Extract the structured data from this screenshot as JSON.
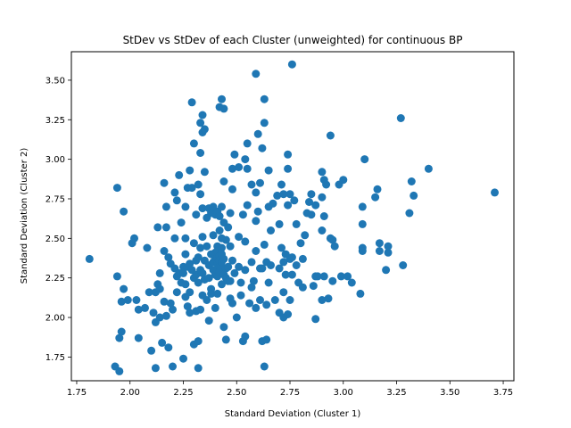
{
  "chart_data": {
    "type": "scatter",
    "title": "StDev vs StDev of each Cluster (unweighted) for continuous BP",
    "xlabel": "Standard Deviation (Cluster 1)",
    "ylabel": "Standard Deviation (Cluster 2)",
    "xlim": [
      1.725,
      3.8
    ],
    "ylim": [
      1.6,
      3.68
    ],
    "xticks": [
      "1.75",
      "2.00",
      "2.25",
      "2.50",
      "2.75",
      "3.00",
      "3.25",
      "3.50",
      "3.75"
    ],
    "yticks": [
      "1.75",
      "2.00",
      "2.25",
      "2.50",
      "2.75",
      "3.00",
      "3.25",
      "3.50"
    ],
    "marker_color": "#1f77b4",
    "grid": false,
    "legend": "none",
    "series": [
      {
        "points": [
          [
            1.81,
            2.37
          ],
          [
            1.93,
            1.69
          ],
          [
            1.94,
            2.82
          ],
          [
            1.94,
            2.26
          ],
          [
            1.95,
            1.87
          ],
          [
            1.95,
            1.66
          ],
          [
            1.96,
            2.1
          ],
          [
            1.96,
            1.91
          ],
          [
            1.97,
            2.67
          ],
          [
            1.97,
            2.18
          ],
          [
            1.99,
            2.11
          ],
          [
            2.01,
            2.47
          ],
          [
            2.02,
            2.5
          ],
          [
            2.03,
            2.11
          ],
          [
            2.04,
            2.05
          ],
          [
            2.04,
            1.87
          ],
          [
            2.07,
            2.06
          ],
          [
            2.08,
            2.44
          ],
          [
            2.09,
            2.16
          ],
          [
            2.1,
            1.79
          ],
          [
            2.11,
            2.03
          ],
          [
            2.12,
            2.16
          ],
          [
            2.12,
            1.97
          ],
          [
            2.12,
            1.68
          ],
          [
            2.13,
            2.57
          ],
          [
            2.13,
            2.21
          ],
          [
            2.14,
            2.28
          ],
          [
            2.14,
            2.18
          ],
          [
            2.14,
            2.0
          ],
          [
            2.15,
            1.84
          ],
          [
            2.16,
            2.85
          ],
          [
            2.16,
            2.42
          ],
          [
            2.16,
            2.1
          ],
          [
            2.17,
            2.57
          ],
          [
            2.17,
            2.01
          ],
          [
            2.17,
            2.7
          ],
          [
            2.18,
            1.81
          ],
          [
            2.18,
            2.38
          ],
          [
            2.19,
            2.34
          ],
          [
            2.19,
            2.09
          ],
          [
            2.2,
            2.05
          ],
          [
            2.2,
            1.69
          ],
          [
            2.21,
            2.79
          ],
          [
            2.21,
            2.5
          ],
          [
            2.21,
            2.31
          ],
          [
            2.22,
            2.26
          ],
          [
            2.22,
            2.16
          ],
          [
            2.22,
            2.74
          ],
          [
            2.23,
            2.9
          ],
          [
            2.23,
            2.28
          ],
          [
            2.24,
            2.6
          ],
          [
            2.24,
            2.22
          ],
          [
            2.25,
            2.32
          ],
          [
            2.25,
            2.28
          ],
          [
            2.25,
            1.74
          ],
          [
            2.26,
            2.7
          ],
          [
            2.26,
            2.5
          ],
          [
            2.26,
            2.4
          ],
          [
            2.26,
            2.13
          ],
          [
            2.26,
            2.21
          ],
          [
            2.27,
            2.82
          ],
          [
            2.27,
            2.32
          ],
          [
            2.27,
            2.07
          ],
          [
            2.28,
            2.93
          ],
          [
            2.28,
            2.34
          ],
          [
            2.28,
            2.16
          ],
          [
            2.28,
            2.03
          ],
          [
            2.29,
            3.36
          ],
          [
            2.29,
            2.82
          ],
          [
            2.29,
            2.3
          ],
          [
            2.3,
            3.1
          ],
          [
            2.3,
            2.47
          ],
          [
            2.3,
            2.25
          ],
          [
            2.3,
            1.83
          ],
          [
            2.31,
            2.65
          ],
          [
            2.31,
            2.36
          ],
          [
            2.31,
            2.27
          ],
          [
            2.31,
            2.04
          ],
          [
            2.32,
            2.84
          ],
          [
            2.32,
            2.38
          ],
          [
            2.32,
            2.22
          ],
          [
            2.32,
            1.85
          ],
          [
            2.32,
            1.68
          ],
          [
            2.33,
            3.23
          ],
          [
            2.33,
            3.04
          ],
          [
            2.33,
            2.78
          ],
          [
            2.33,
            2.44
          ],
          [
            2.33,
            2.3
          ],
          [
            2.33,
            2.05
          ],
          [
            2.34,
            3.28
          ],
          [
            2.34,
            3.17
          ],
          [
            2.34,
            2.69
          ],
          [
            2.34,
            2.51
          ],
          [
            2.34,
            2.28
          ],
          [
            2.34,
            2.14
          ],
          [
            2.35,
            2.92
          ],
          [
            2.35,
            3.19
          ],
          [
            2.35,
            2.36
          ],
          [
            2.35,
            2.24
          ],
          [
            2.36,
            2.63
          ],
          [
            2.36,
            2.45
          ],
          [
            2.36,
            2.11
          ],
          [
            2.37,
            2.69
          ],
          [
            2.37,
            2.33
          ],
          [
            2.37,
            2.25
          ],
          [
            2.37,
            1.98
          ],
          [
            2.38,
            2.4
          ],
          [
            2.38,
            2.18
          ],
          [
            2.38,
            2.15
          ],
          [
            2.38,
            2.66
          ],
          [
            2.39,
            2.7
          ],
          [
            2.39,
            2.52
          ],
          [
            2.39,
            2.35
          ],
          [
            2.39,
            2.3
          ],
          [
            2.4,
            2.65
          ],
          [
            2.4,
            2.41
          ],
          [
            2.4,
            2.37
          ],
          [
            2.4,
            2.27
          ],
          [
            2.4,
            2.06
          ],
          [
            2.41,
            2.67
          ],
          [
            2.41,
            2.45
          ],
          [
            2.41,
            2.42
          ],
          [
            2.41,
            2.38
          ],
          [
            2.41,
            2.34
          ],
          [
            2.41,
            2.26
          ],
          [
            2.41,
            2.15
          ],
          [
            2.42,
            3.33
          ],
          [
            2.42,
            2.64
          ],
          [
            2.42,
            2.55
          ],
          [
            2.42,
            2.39
          ],
          [
            2.42,
            2.36
          ],
          [
            2.42,
            2.32
          ],
          [
            2.42,
            2.29
          ],
          [
            2.43,
            3.38
          ],
          [
            2.43,
            2.7
          ],
          [
            2.43,
            2.5
          ],
          [
            2.43,
            2.44
          ],
          [
            2.43,
            2.4
          ],
          [
            2.43,
            2.35
          ],
          [
            2.43,
            2.21
          ],
          [
            2.44,
            3.32
          ],
          [
            2.44,
            2.86
          ],
          [
            2.44,
            2.6
          ],
          [
            2.44,
            2.37
          ],
          [
            2.44,
            2.27
          ],
          [
            2.44,
            1.94
          ],
          [
            2.45,
            2.49
          ],
          [
            2.45,
            2.31
          ],
          [
            2.45,
            2.25
          ],
          [
            2.45,
            1.86
          ],
          [
            2.46,
            2.57
          ],
          [
            2.46,
            2.23
          ],
          [
            2.46,
            2.32
          ],
          [
            2.47,
            2.66
          ],
          [
            2.47,
            2.45
          ],
          [
            2.47,
            2.23
          ],
          [
            2.47,
            2.12
          ],
          [
            2.48,
            2.94
          ],
          [
            2.48,
            2.81
          ],
          [
            2.48,
            2.36
          ],
          [
            2.48,
            2.09
          ],
          [
            2.49,
            3.03
          ],
          [
            2.49,
            2.28
          ],
          [
            2.5,
            2.0
          ],
          [
            2.51,
            2.95
          ],
          [
            2.51,
            2.51
          ],
          [
            2.51,
            2.32
          ],
          [
            2.52,
            2.22
          ],
          [
            2.52,
            2.14
          ],
          [
            2.53,
            2.65
          ],
          [
            2.53,
            1.85
          ],
          [
            2.54,
            3.0
          ],
          [
            2.54,
            2.48
          ],
          [
            2.54,
            2.3
          ],
          [
            2.54,
            1.88
          ],
          [
            2.55,
            3.1
          ],
          [
            2.55,
            2.94
          ],
          [
            2.55,
            2.71
          ],
          [
            2.56,
            2.09
          ],
          [
            2.57,
            2.84
          ],
          [
            2.57,
            2.35
          ],
          [
            2.57,
            2.19
          ],
          [
            2.58,
            2.23
          ],
          [
            2.59,
            3.54
          ],
          [
            2.59,
            2.79
          ],
          [
            2.59,
            2.61
          ],
          [
            2.59,
            2.42
          ],
          [
            2.59,
            2.06
          ],
          [
            2.6,
            3.16
          ],
          [
            2.6,
            2.67
          ],
          [
            2.61,
            2.85
          ],
          [
            2.61,
            2.31
          ],
          [
            2.61,
            2.11
          ],
          [
            2.62,
            3.07
          ],
          [
            2.62,
            2.31
          ],
          [
            2.62,
            1.85
          ],
          [
            2.63,
            2.46
          ],
          [
            2.63,
            1.69
          ],
          [
            2.63,
            3.23
          ],
          [
            2.63,
            3.38
          ],
          [
            2.64,
            2.35
          ],
          [
            2.64,
            2.08
          ],
          [
            2.64,
            1.86
          ],
          [
            2.65,
            2.93
          ],
          [
            2.65,
            2.7
          ],
          [
            2.65,
            2.22
          ],
          [
            2.66,
            2.55
          ],
          [
            2.66,
            2.33
          ],
          [
            2.67,
            2.72
          ],
          [
            2.68,
            2.11
          ],
          [
            2.69,
            2.77
          ],
          [
            2.7,
            2.59
          ],
          [
            2.7,
            2.31
          ],
          [
            2.7,
            2.03
          ],
          [
            2.71,
            2.84
          ],
          [
            2.71,
            2.44
          ],
          [
            2.72,
            2.78
          ],
          [
            2.72,
            2.35
          ],
          [
            2.72,
            2.16
          ],
          [
            2.72,
            2.0
          ],
          [
            2.73,
            2.4
          ],
          [
            2.73,
            2.27
          ],
          [
            2.74,
            3.03
          ],
          [
            2.74,
            2.94
          ],
          [
            2.74,
            2.71
          ],
          [
            2.74,
            2.02
          ],
          [
            2.75,
            2.78
          ],
          [
            2.75,
            2.37
          ],
          [
            2.75,
            2.11
          ],
          [
            2.76,
            3.6
          ],
          [
            2.76,
            2.38
          ],
          [
            2.76,
            2.27
          ],
          [
            2.77,
            2.74
          ],
          [
            2.78,
            2.59
          ],
          [
            2.78,
            2.33
          ],
          [
            2.79,
            2.22
          ],
          [
            2.8,
            2.47
          ],
          [
            2.81,
            2.37
          ],
          [
            2.81,
            2.19
          ],
          [
            2.82,
            2.52
          ],
          [
            2.83,
            2.66
          ],
          [
            2.84,
            2.73
          ],
          [
            2.85,
            2.78
          ],
          [
            2.85,
            2.65
          ],
          [
            2.86,
            2.2
          ],
          [
            2.87,
            2.71
          ],
          [
            2.87,
            2.26
          ],
          [
            2.87,
            1.99
          ],
          [
            2.88,
            2.26
          ],
          [
            2.9,
            2.92
          ],
          [
            2.9,
            2.76
          ],
          [
            2.9,
            2.55
          ],
          [
            2.9,
            2.11
          ],
          [
            2.91,
            2.87
          ],
          [
            2.91,
            2.64
          ],
          [
            2.91,
            2.26
          ],
          [
            2.92,
            2.84
          ],
          [
            2.93,
            2.12
          ],
          [
            2.94,
            2.5
          ],
          [
            2.94,
            3.15
          ],
          [
            2.95,
            2.49
          ],
          [
            2.95,
            2.23
          ],
          [
            2.96,
            2.45
          ],
          [
            2.98,
            2.84
          ],
          [
            2.99,
            2.26
          ],
          [
            3.0,
            2.87
          ],
          [
            3.02,
            2.26
          ],
          [
            3.04,
            2.22
          ],
          [
            3.08,
            2.15
          ],
          [
            3.09,
            2.7
          ],
          [
            3.09,
            2.59
          ],
          [
            3.09,
            2.44
          ],
          [
            3.09,
            2.42
          ],
          [
            3.1,
            3.0
          ],
          [
            3.15,
            2.76
          ],
          [
            3.16,
            2.81
          ],
          [
            3.17,
            2.47
          ],
          [
            3.17,
            2.42
          ],
          [
            3.2,
            2.3
          ],
          [
            3.21,
            2.41
          ],
          [
            3.21,
            2.45
          ],
          [
            3.27,
            3.26
          ],
          [
            3.28,
            2.33
          ],
          [
            3.31,
            2.66
          ],
          [
            3.32,
            2.86
          ],
          [
            3.33,
            2.77
          ],
          [
            3.4,
            2.94
          ],
          [
            3.71,
            2.79
          ]
        ]
      }
    ]
  }
}
